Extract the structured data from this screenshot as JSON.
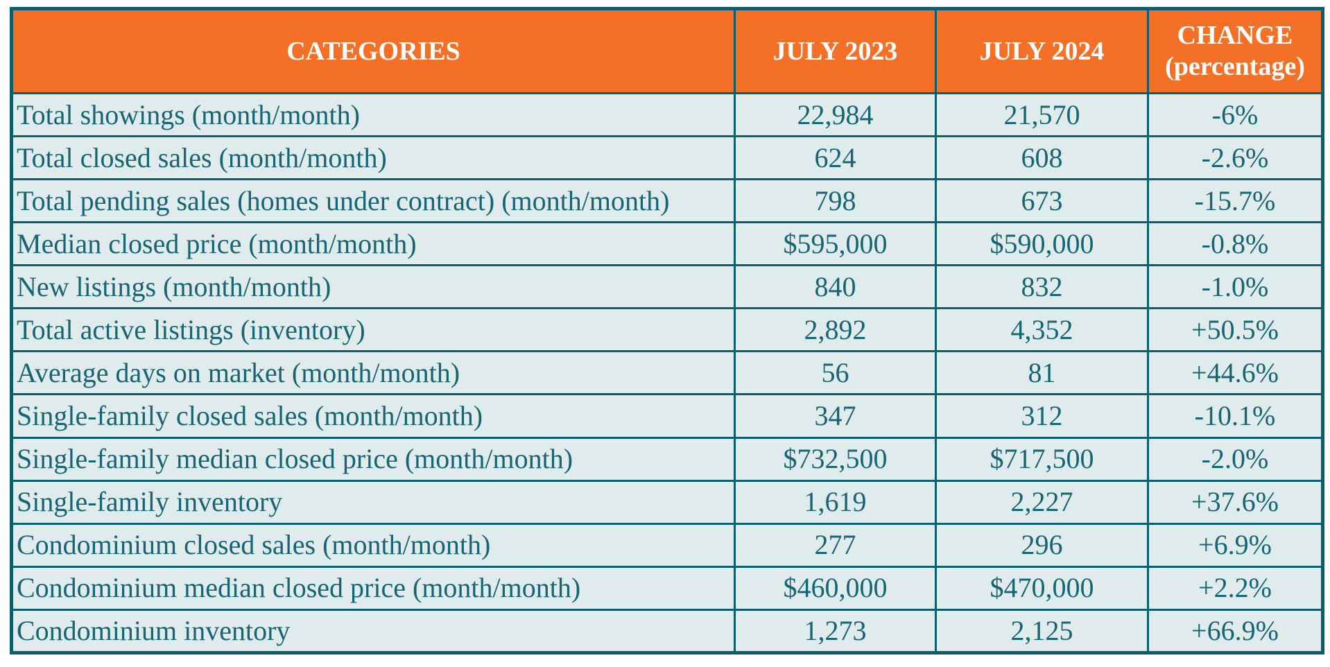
{
  "colors": {
    "header_bg": "#F37026",
    "header_text": "#FFFFFF",
    "border_color": "#0B5E6F",
    "cell_bg": "#E0EBEC",
    "text_color": "#166577"
  },
  "chart_data": {
    "type": "table",
    "columns": [
      "CATEGORIES",
      "JULY 2023",
      "JULY 2024",
      "CHANGE (percentage)"
    ],
    "rows": [
      [
        "Total showings (month/month)",
        "22,984",
        "21,570",
        "-6%"
      ],
      [
        "Total closed sales (month/month)",
        "624",
        "608",
        "-2.6%"
      ],
      [
        "Total pending sales (homes under contract) (month/month)",
        "798",
        "673",
        "-15.7%"
      ],
      [
        "Median closed price (month/month)",
        "$595,000",
        "$590,000",
        "-0.8%"
      ],
      [
        "New listings (month/month)",
        "840",
        "832",
        "-1.0%"
      ],
      [
        "Total active listings (inventory)",
        "2,892",
        "4,352",
        "+50.5%"
      ],
      [
        "Average days on market (month/month)",
        "56",
        "81",
        "+44.6%"
      ],
      [
        "Single-family closed sales (month/month)",
        "347",
        "312",
        "-10.1%"
      ],
      [
        "Single-family median closed price (month/month)",
        "$732,500",
        "$717,500",
        "-2.0%"
      ],
      [
        "Single-family inventory",
        "1,619",
        "2,227",
        "+37.6%"
      ],
      [
        "Condominium closed sales (month/month)",
        "277",
        "296",
        "+6.9%"
      ],
      [
        "Condominium median closed price (month/month)",
        "$460,000",
        "$470,000",
        "+2.2%"
      ],
      [
        "Condominium inventory",
        "1,273",
        "2,125",
        "+66.9%"
      ]
    ],
    "layout": {
      "header_background": "#F37026",
      "grid": true,
      "value_columns_alignment": "center",
      "category_column_alignment": "left"
    }
  }
}
